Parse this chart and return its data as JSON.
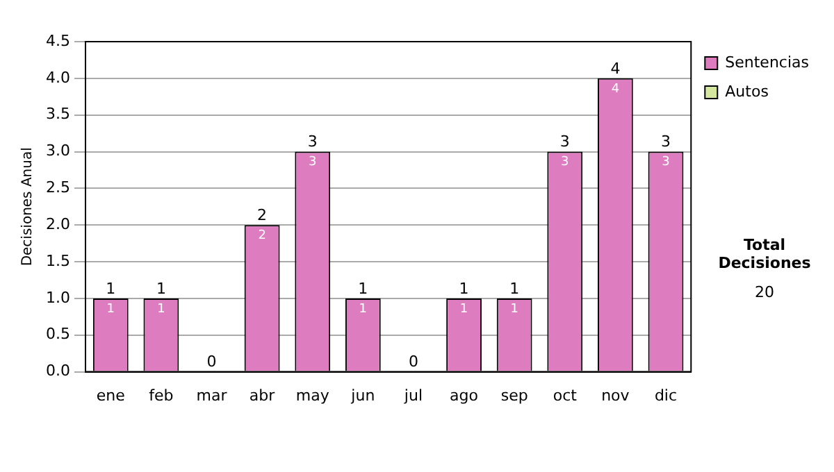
{
  "chart_data": {
    "type": "bar",
    "ylabel": "Decisiones Anual",
    "categories": [
      "ene",
      "feb",
      "mar",
      "abr",
      "may",
      "jun",
      "jul",
      "ago",
      "sep",
      "oct",
      "nov",
      "dic"
    ],
    "series": [
      {
        "name": "Sentencias",
        "color": "#dd7dc0",
        "values": [
          1,
          1,
          0,
          2,
          3,
          1,
          0,
          1,
          1,
          3,
          4,
          3
        ],
        "value_labels": [
          "1",
          "1",
          null,
          "2",
          "3",
          "1",
          null,
          "1",
          "1",
          "3",
          "4",
          "3"
        ]
      },
      {
        "name": "Autos",
        "color": "#d6e8a0",
        "values": [
          0,
          0,
          0,
          0,
          0,
          0,
          0,
          0,
          0,
          0,
          0,
          0
        ]
      }
    ],
    "stacked": true,
    "totals": [
      "1",
      "1",
      "0",
      "2",
      "3",
      "1",
      "0",
      "1",
      "1",
      "3",
      "4",
      "3"
    ],
    "ylim": [
      0,
      4.5
    ],
    "yticks": [
      {
        "value": 0,
        "label": "0.0"
      },
      {
        "value": 0.5,
        "label": "0.5"
      },
      {
        "value": 1,
        "label": "1.0"
      },
      {
        "value": 1.5,
        "label": "1.5"
      },
      {
        "value": 2,
        "label": "2.0"
      },
      {
        "value": 2.5,
        "label": "2.5"
      },
      {
        "value": 3,
        "label": "3.0"
      },
      {
        "value": 3.5,
        "label": "3.5"
      },
      {
        "value": 4,
        "label": "4.0"
      },
      {
        "value": 4.5,
        "label": "4.5"
      }
    ],
    "grid": "y",
    "legend": "right",
    "annotations": [
      "Total Decisiones",
      "20"
    ]
  }
}
